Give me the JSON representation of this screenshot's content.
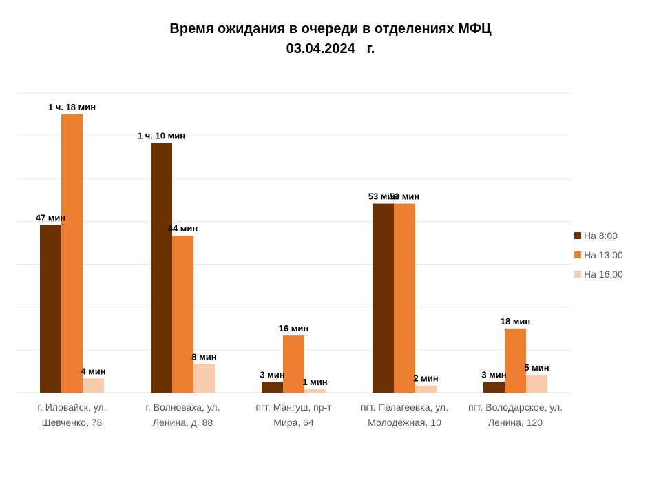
{
  "chart_data": {
    "type": "bar",
    "title": "Время ожидания в очереди в отделениях МФЦ",
    "subtitle": "03.04.2024   г.",
    "unit": "мин",
    "ylim": [
      0,
      84
    ],
    "grid": true,
    "legend_position": "right",
    "categories": [
      [
        "г. Иловайск, ул.",
        "Шевченко, 78"
      ],
      [
        "г. Волноваха, ул.",
        "Ленина, д. 88"
      ],
      [
        "пгт. Мангуш, пр-т",
        "Мира, 64"
      ],
      [
        "пгт. Пелагеевка, ул.",
        "Молодежная, 10"
      ],
      [
        "пгт. Володарское, ул.",
        "Ленина, 120"
      ]
    ],
    "series": [
      {
        "name": "На 8:00",
        "color": "#6B3100",
        "values": [
          47,
          70,
          3,
          53,
          3
        ],
        "labels": [
          "47 мин",
          "1 ч. 10 мин",
          "3 мин",
          "53 мин",
          "3 мин"
        ]
      },
      {
        "name": "На 13:00",
        "color": "#ED7D31",
        "values": [
          78,
          44,
          16,
          53,
          18
        ],
        "labels": [
          "1 ч. 18 мин",
          "44 мин",
          "16 мин",
          "53 мин",
          "18 мин"
        ]
      },
      {
        "name": "На 16:00",
        "color": "#F8CBAD",
        "values": [
          4,
          8,
          1,
          2,
          5
        ],
        "labels": [
          "4 мин",
          "8 мин",
          "1 мин",
          "2 мин",
          "5 мин"
        ]
      }
    ]
  }
}
